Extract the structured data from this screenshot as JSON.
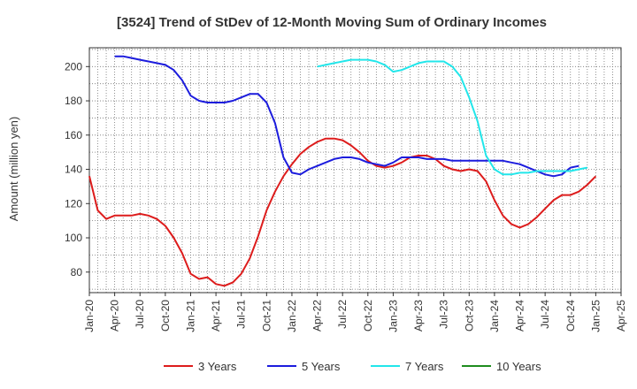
{
  "chart_data": {
    "type": "line",
    "title": "[3524]  Trend of StDev of 12-Month Moving Sum of Ordinary Incomes",
    "ylabel": "Amount (million yen)",
    "xlabel": "",
    "ylim": [
      68,
      211
    ],
    "yticks": [
      80,
      100,
      120,
      140,
      160,
      180,
      200
    ],
    "xticks": [
      "Jan-20",
      "Apr-20",
      "Jul-20",
      "Oct-20",
      "Jan-21",
      "Apr-21",
      "Jul-21",
      "Oct-21",
      "Jan-22",
      "Apr-22",
      "Jul-22",
      "Oct-22",
      "Jan-23",
      "Apr-23",
      "Jul-23",
      "Oct-23",
      "Jan-24",
      "Apr-24",
      "Jul-24",
      "Oct-24",
      "Jan-25",
      "Apr-25"
    ],
    "grid": true,
    "legend_position": "bottom",
    "series": [
      {
        "name": "3 Years",
        "color": "#dd1c1c",
        "start": "Jan-20",
        "values": [
          136,
          116,
          111,
          113,
          113,
          113,
          114,
          113,
          111,
          107,
          100,
          91,
          79,
          76,
          77,
          73,
          72,
          74,
          79,
          88,
          101,
          116,
          127,
          136,
          143,
          149,
          153,
          156,
          158,
          158,
          157,
          154,
          150,
          145,
          142,
          141,
          142,
          144,
          147,
          148,
          148,
          146,
          142,
          140,
          139,
          140,
          139,
          133,
          122,
          113,
          108,
          106,
          108,
          112,
          117,
          122,
          125,
          125,
          127,
          131,
          136
        ],
        "ordinary_income_note": ""
      },
      {
        "name": "5 Years",
        "color": "#1c1cdd",
        "start": "Apr-20",
        "values": [
          206,
          206,
          205,
          204,
          203,
          202,
          201,
          198,
          192,
          183,
          180,
          179,
          179,
          179,
          180,
          182,
          184,
          184,
          179,
          167,
          147,
          138,
          137,
          140,
          142,
          144,
          146,
          147,
          147,
          146,
          144,
          143,
          142,
          144,
          147,
          147,
          147,
          146,
          146,
          146,
          145,
          145,
          145,
          145,
          145,
          145,
          145,
          144,
          143,
          141,
          139,
          137,
          136,
          137,
          141,
          142
        ]
      },
      {
        "name": "7 Years",
        "color": "#22e6ea",
        "start": "Apr-22",
        "values": [
          200,
          201,
          202,
          203,
          204,
          204,
          204,
          203,
          201,
          197,
          198,
          200,
          202,
          203,
          203,
          203,
          200,
          194,
          182,
          168,
          148,
          140,
          137,
          137,
          138,
          138,
          139,
          139,
          139,
          139,
          139,
          140,
          141
        ]
      },
      {
        "name": "10 Years",
        "color": "#1e8c1e",
        "start": "Jan-25",
        "values": []
      }
    ]
  }
}
